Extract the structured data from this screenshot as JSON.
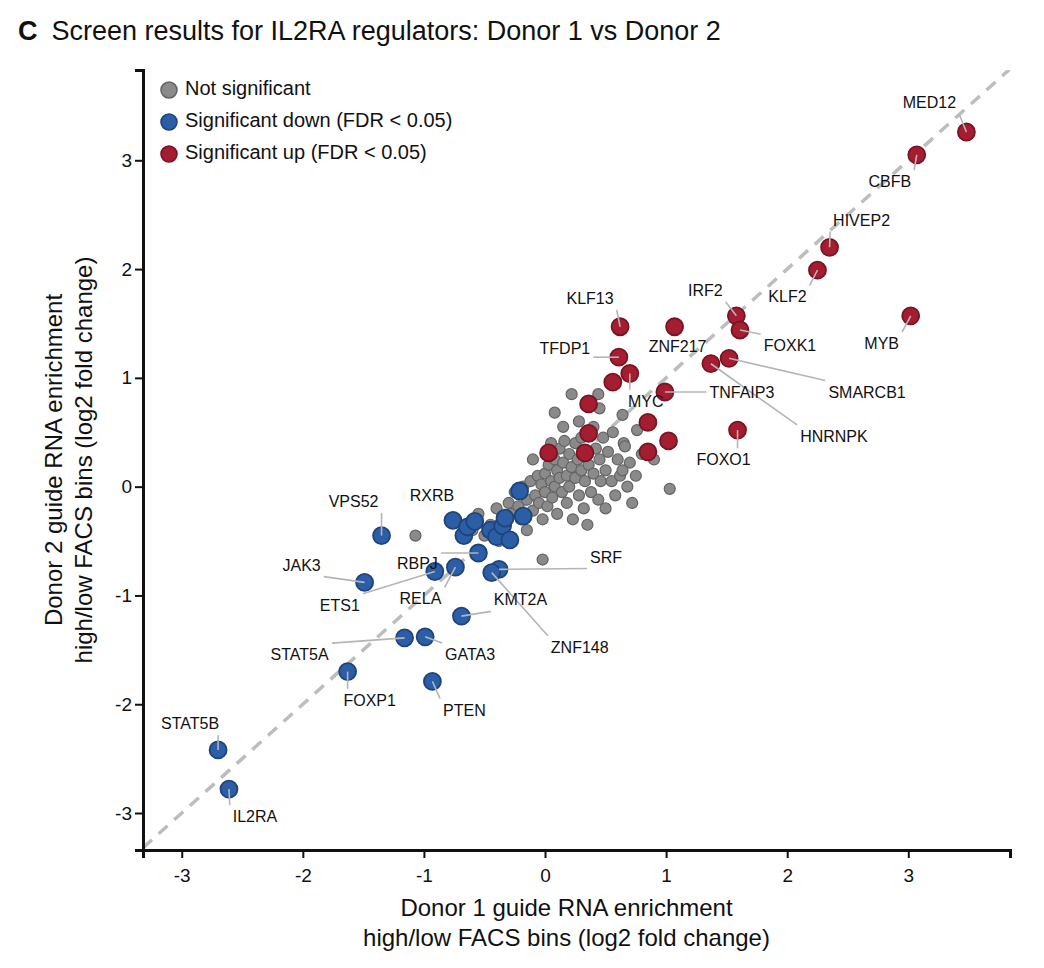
{
  "chart_data": {
    "type": "scatter",
    "panel_label": "C",
    "title": "Screen results for IL2RA regulators: Donor 1 vs Donor 2",
    "x_label": [
      "Donor 1 guide RNA enrichment",
      "high/low FACS bins (log2 fold change)"
    ],
    "y_label": [
      "Donor 2 guide RNA enrichment",
      "high/low FACS bins (log2 fold change)"
    ],
    "xlim": [
      -3.32,
      3.84
    ],
    "ylim": [
      -3.34,
      3.83
    ],
    "xticks": [
      -3,
      -2,
      -1,
      0,
      1,
      2,
      3
    ],
    "yticks": [
      -3,
      -2,
      -1,
      0,
      1,
      2,
      3
    ],
    "legend": "top-left",
    "grid": false,
    "reference_line": {
      "x": [
        -3.32,
        3.84
      ],
      "values": [
        -3.32,
        3.84
      ],
      "line_style": "dashed",
      "color": "#bdbdbd"
    },
    "series": [
      {
        "name": "Not significant",
        "color": "#8a8a8a",
        "marker": "circle",
        "x": [
          -0.45,
          -0.4,
          -0.35,
          -0.3,
          -0.28,
          -0.25,
          -0.22,
          -0.2,
          -0.18,
          -0.15,
          -0.12,
          -0.1,
          -0.08,
          -0.06,
          -0.05,
          -0.03,
          -0.02,
          0.0,
          0.0,
          0.02,
          0.03,
          0.05,
          0.06,
          0.08,
          0.08,
          0.1,
          0.1,
          0.12,
          0.12,
          0.14,
          0.15,
          0.16,
          0.18,
          0.18,
          0.2,
          0.2,
          0.22,
          0.23,
          0.25,
          0.25,
          0.27,
          0.28,
          0.3,
          0.3,
          0.32,
          0.33,
          0.35,
          0.36,
          0.38,
          0.4,
          0.4,
          0.42,
          0.44,
          0.45,
          0.46,
          0.48,
          0.5,
          0.5,
          0.52,
          0.55,
          0.56,
          0.58,
          0.6,
          0.62,
          0.65,
          0.68,
          0.7,
          0.72,
          0.75,
          0.8,
          -0.5,
          -0.55,
          -0.6,
          -0.38,
          -0.15,
          0.05,
          -0.1,
          0.15,
          0.28,
          0.35,
          1.03,
          -0.02,
          -1.07,
          0.44,
          0.08,
          0.64,
          0.66,
          0.76,
          0.64,
          0.22,
          0.9,
          0.45
        ],
        "values": [
          -0.35,
          -0.2,
          -0.3,
          -0.15,
          -0.25,
          -0.05,
          -0.18,
          -0.3,
          0.0,
          -0.12,
          0.05,
          -0.22,
          -0.08,
          0.1,
          -0.15,
          0.02,
          -0.3,
          0.12,
          -0.05,
          -0.18,
          0.2,
          0.05,
          -0.1,
          0.25,
          0.0,
          0.15,
          -0.25,
          0.35,
          0.08,
          -0.05,
          0.22,
          0.42,
          0.1,
          -0.15,
          0.3,
          0.0,
          0.18,
          -0.3,
          0.4,
          0.08,
          0.25,
          -0.08,
          0.15,
          0.45,
          -0.2,
          0.05,
          0.3,
          0.2,
          -0.05,
          0.12,
          0.55,
          0.35,
          -0.12,
          0.25,
          0.05,
          0.45,
          0.15,
          -0.2,
          0.32,
          0.05,
          0.5,
          -0.08,
          0.25,
          0.1,
          0.4,
          0.0,
          0.22,
          -0.15,
          0.1,
          0.3,
          -0.45,
          -0.25,
          -0.4,
          -0.5,
          -0.4,
          0.4,
          0.25,
          0.55,
          0.6,
          -0.35,
          -0.02,
          -0.67,
          -0.45,
          0.85,
          0.68,
          0.66,
          0.37,
          0.52,
          0.15,
          0.85,
          0.25,
          0.72
        ]
      },
      {
        "name": "Significant down (FDR < 0.05)",
        "color": "#2b5ea6",
        "marker": "circle",
        "x": [
          -2.61,
          -2.7,
          -1.63,
          -0.93,
          -1.16,
          -0.99,
          -0.69,
          -1.49,
          -0.91,
          -0.74,
          -1.35,
          -0.55,
          -0.76,
          -0.38,
          -0.44,
          -0.67,
          -0.64,
          -0.58,
          -0.45,
          -0.4,
          -0.35,
          -0.29,
          -0.21,
          -0.18,
          -0.33
        ],
        "values": [
          -2.78,
          -2.42,
          -1.7,
          -1.79,
          -1.39,
          -1.38,
          -1.19,
          -0.88,
          -0.78,
          -0.74,
          -0.45,
          -0.61,
          -0.31,
          -0.76,
          -0.79,
          -0.45,
          -0.37,
          -0.32,
          -0.4,
          -0.46,
          -0.36,
          -0.49,
          -0.04,
          -0.27,
          -0.29
        ],
        "point_labels": [
          "IL2RA",
          "STAT5B",
          "FOXP1",
          "PTEN",
          "STAT5A",
          "GATA3",
          "KMT2A",
          "JAK3",
          "ETS1",
          "RELA",
          "VPS52",
          "RBPJ",
          "RXRB",
          "SRF",
          "ZNF148",
          null,
          null,
          null,
          null,
          null,
          null,
          null,
          null,
          null,
          null
        ]
      },
      {
        "name": "Significant up (FDR < 0.05)",
        "color": "#a51d30",
        "marker": "circle",
        "x": [
          3.48,
          3.07,
          2.35,
          2.25,
          3.02,
          1.58,
          1.61,
          1.07,
          0.62,
          1.52,
          1.37,
          0.61,
          0.7,
          0.99,
          1.59,
          0.56,
          0.36,
          0.36,
          0.33,
          0.03,
          0.85,
          0.85,
          1.02
        ],
        "values": [
          3.26,
          3.05,
          2.2,
          1.99,
          1.57,
          1.57,
          1.44,
          1.47,
          1.47,
          1.18,
          1.13,
          1.19,
          1.04,
          0.87,
          0.52,
          0.96,
          0.76,
          0.49,
          0.31,
          0.31,
          0.59,
          0.32,
          0.42
        ],
        "point_labels": [
          "MED12",
          "CBFB",
          "HIVEP2",
          "KLF2",
          "MYB",
          "IRF2",
          "FOXK1",
          "ZNF217",
          "KLF13",
          "SMARCB1",
          "HNRNPK",
          "TFDP1",
          "MYC",
          "TNFAIP3",
          "FOXO1",
          null,
          null,
          null,
          null,
          null,
          null,
          null,
          null
        ]
      }
    ]
  }
}
